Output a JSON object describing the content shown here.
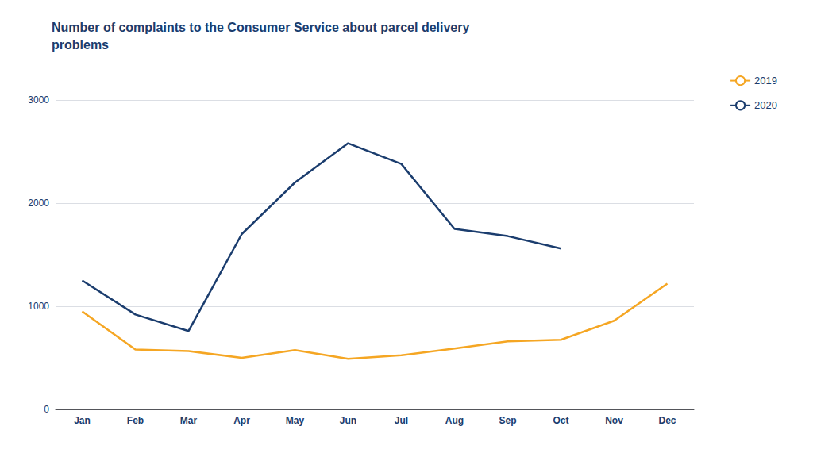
{
  "chart_data": {
    "type": "line",
    "title": "Number of complaints to the Consumer Service about parcel delivery\nproblems",
    "categories": [
      "Jan",
      "Feb",
      "Mar",
      "Apr",
      "May",
      "Jun",
      "Jul",
      "Aug",
      "Sep",
      "Oct",
      "Nov",
      "Dec"
    ],
    "series": [
      {
        "name": "2019",
        "color": "#F5A623",
        "values": [
          950,
          580,
          565,
          500,
          575,
          490,
          525,
          590,
          660,
          675,
          860,
          1220
        ]
      },
      {
        "name": "2020",
        "color": "#1B3D6E",
        "values": [
          1250,
          920,
          760,
          1700,
          2200,
          2580,
          2380,
          1750,
          1680,
          1560,
          null,
          null
        ]
      }
    ],
    "ylim": [
      0,
      3200
    ],
    "yticks": [
      0,
      1000,
      2000,
      3000
    ],
    "grid": true,
    "legend": "right"
  }
}
